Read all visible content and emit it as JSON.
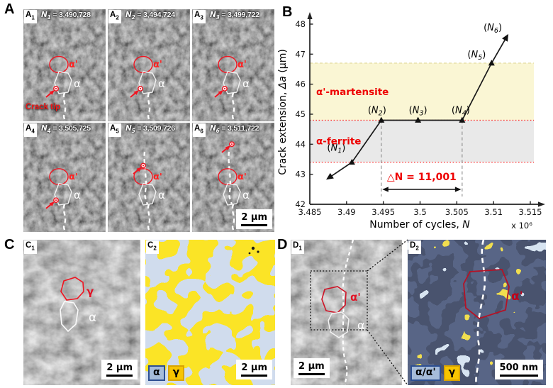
{
  "panels": {
    "a": {
      "label": "A",
      "alpha_prime_label": "α'",
      "alpha_label": "α",
      "crack_tip_label": "Crack tip",
      "scale_bar_label": "2 μm",
      "tiles": [
        {
          "chip_base": "A",
          "chip_sub": "1",
          "n_base": "N",
          "n_sub": "1",
          "n_value": "= 3,490,728"
        },
        {
          "chip_base": "A",
          "chip_sub": "2",
          "n_base": "N",
          "n_sub": "2",
          "n_value": "= 3,494,724"
        },
        {
          "chip_base": "A",
          "chip_sub": "3",
          "n_base": "N",
          "n_sub": "3",
          "n_value": "= 3,499,722"
        },
        {
          "chip_base": "A",
          "chip_sub": "4",
          "n_base": "N",
          "n_sub": "4",
          "n_value": "= 3,505,725"
        },
        {
          "chip_base": "A",
          "chip_sub": "5",
          "n_base": "N",
          "n_sub": "5",
          "n_value": "= 3,509,726"
        },
        {
          "chip_base": "A",
          "chip_sub": "6",
          "n_base": "N",
          "n_sub": "6",
          "n_value": "= 3,511,722"
        }
      ]
    },
    "b": {
      "label": "B"
    },
    "c": {
      "label": "C",
      "c1": {
        "chip_base": "C",
        "chip_sub": "1",
        "gamma_label": "γ",
        "alpha_label": "α",
        "scale_bar_label": "2 μm"
      },
      "c2": {
        "chip_base": "C",
        "chip_sub": "2",
        "scale_bar_label": "2 μm",
        "legend": [
          {
            "text": "α",
            "color": "#a6bcda"
          },
          {
            "text": "γ",
            "color": "#f8c500"
          }
        ]
      }
    },
    "d": {
      "label": "D",
      "d1": {
        "chip_base": "D",
        "chip_sub": "1",
        "alpha_prime_label": "α'",
        "alpha_label": "α",
        "scale_bar_label": "2 μm"
      },
      "d2": {
        "chip_base": "D",
        "chip_sub": "2",
        "alpha_prime_label": "α'",
        "scale_bar_label": "500 nm",
        "legend": [
          {
            "text": "α/α'",
            "color": "#a6bcda"
          },
          {
            "text": "γ",
            "color": "#f8c500"
          }
        ]
      }
    }
  },
  "chart_data": {
    "type": "line",
    "xlabel_base": "Number of cycles, ",
    "xlabel_var": "N",
    "x_multiplier": "x 10⁶",
    "ylabel_base": "Crack extension, ",
    "ylabel_var": "Δa",
    "ylabel_unit": " (μm)",
    "xlim": [
      3.485,
      3.515
    ],
    "ylim": [
      42,
      48.4
    ],
    "xticks": [
      3.485,
      3.49,
      3.495,
      3.5,
      3.505,
      3.51,
      3.515
    ],
    "xtick_labels": [
      "3.485",
      "3.49",
      "3.495",
      "3.5",
      "3.505",
      "3.51",
      "3.515"
    ],
    "yticks": [
      42,
      43,
      44,
      45,
      46,
      47,
      48
    ],
    "ytick_labels": [
      "42",
      "43",
      "44",
      "45",
      "46",
      "47",
      "48"
    ],
    "grid": false,
    "series": [
      {
        "name": "crack-extension",
        "color": "#1a1a1a",
        "points": [
          {
            "x": 3.4877,
            "y": 42.9,
            "label_pre": "",
            "label_var": "",
            "label_sub": "",
            "label_post": ""
          },
          {
            "x": 3.490728,
            "y": 43.4,
            "label_pre": "(",
            "label_var": "N",
            "label_sub": "1",
            "label_post": ")"
          },
          {
            "x": 3.494724,
            "y": 44.8,
            "label_pre": "(",
            "label_var": "N",
            "label_sub": "2",
            "label_post": ")"
          },
          {
            "x": 3.499722,
            "y": 44.8,
            "label_pre": "(",
            "label_var": "N",
            "label_sub": "3",
            "label_post": ")"
          },
          {
            "x": 3.505725,
            "y": 44.8,
            "label_pre": "(",
            "label_var": "N",
            "label_sub": "4",
            "label_post": ")"
          },
          {
            "x": 3.509726,
            "y": 46.7,
            "label_pre": "(",
            "label_var": "N",
            "label_sub": "5",
            "label_post": ")"
          },
          {
            "x": 3.511722,
            "y": 47.55,
            "label_pre": "(",
            "label_var": "N",
            "label_sub": "6",
            "label_post": ")"
          }
        ]
      }
    ],
    "bands": [
      {
        "label": "α'-martensite",
        "y0": 44.8,
        "y1": 46.7,
        "fill": "#faf6d4",
        "label_color": "#ee0000"
      },
      {
        "label": "α-ferrite",
        "y0": 43.4,
        "y1": 44.8,
        "fill": "#e9e9e9",
        "label_color": "#ee0000"
      }
    ],
    "ref_lines": [
      {
        "y": 44.8,
        "color": "#ff2a2a"
      },
      {
        "y": 43.4,
        "color": "#ff2a2a"
      }
    ],
    "delta_annotation": {
      "text": "△N = 11,001",
      "x0": 3.494724,
      "x1": 3.505725,
      "color": "#ee0000"
    }
  }
}
